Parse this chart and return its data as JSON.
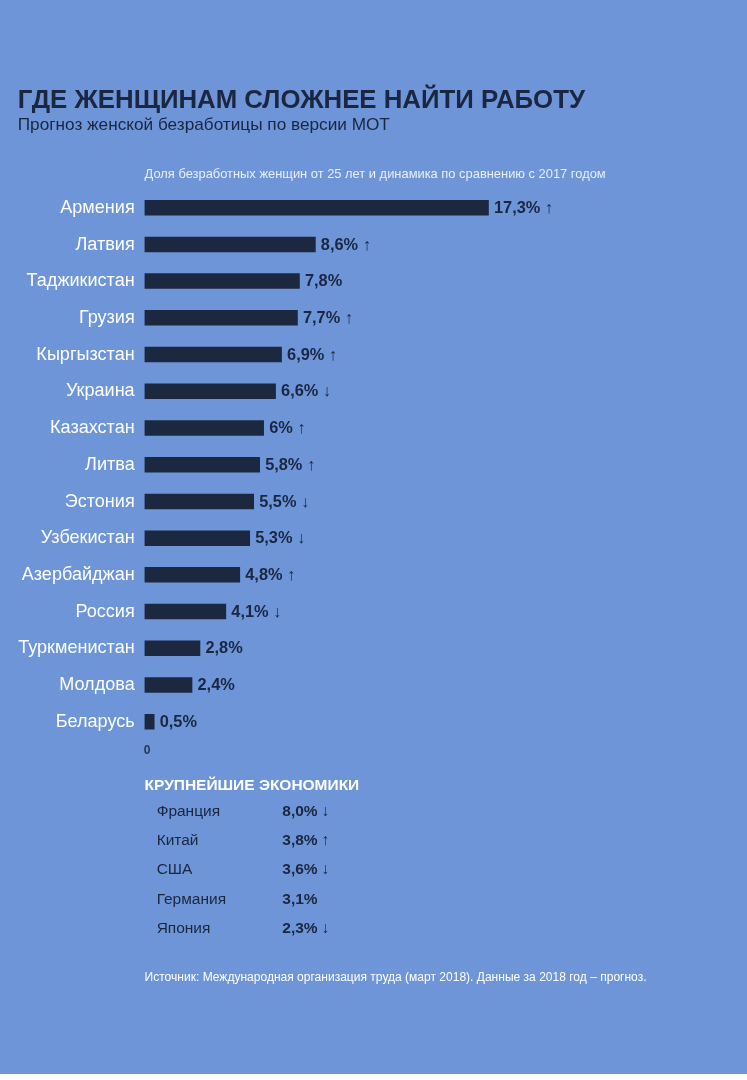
{
  "chart_data": [
    {
      "type": "bar",
      "orientation": "horizontal",
      "title": "ГДЕ ЖЕНЩИНАМ СЛОЖНЕЕ НАЙТИ РАБОТУ",
      "subtitle": "Прогноз женской безработицы по версии МОТ",
      "xlabel": "Доля безработных женщин от 25 лет и динамика по сравнению с 2017 годом",
      "categories": [
        "Армения",
        "Латвия",
        "Таджикистан",
        "Грузия",
        "Кыргызстан",
        "Украина",
        "Казахстан",
        "Литва",
        "Эстония",
        "Узбекистан",
        "Азербайджан",
        "Россия",
        "Туркменистан",
        "Молдова",
        "Беларусь"
      ],
      "values": [
        17.3,
        8.6,
        7.8,
        7.7,
        6.9,
        6.6,
        6,
        5.8,
        5.5,
        5.3,
        4.8,
        4.1,
        2.8,
        2.4,
        0.5
      ],
      "value_labels": [
        "17,3% ↑",
        "8,6% ↑",
        "7,8%",
        "7,7% ↑",
        "6,9% ↑",
        "6,6% ↓",
        "6% ↑",
        "5,8% ↑",
        "5,5% ↓",
        "5,3% ↓",
        "4,8% ↑",
        "4,1% ↓",
        "2,8%",
        "2,4%",
        "0,5%"
      ],
      "color": "#1c2840",
      "grid": false,
      "annotations": [
        "0"
      ]
    },
    {
      "type": "other",
      "title": "КРУПНЕЙШИЕ ЭКОНОМИКИ",
      "categories": [
        "Франция",
        "Китай",
        "США",
        "Германия",
        "Япония"
      ],
      "values": [
        8.0,
        3.8,
        3.6,
        3.1,
        2.3
      ],
      "value_labels": [
        "8,0% ↓",
        "3,8% ↑",
        "3,6% ↓",
        "3,1%",
        "2,3% ↓"
      ],
      "annotations": [
        "Источник: Международная организация труда (март 2018). Данные за 2018 год – прогноз."
      ]
    }
  ]
}
